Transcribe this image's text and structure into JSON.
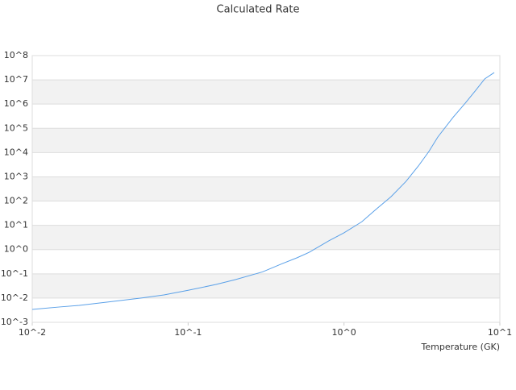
{
  "chart_data": {
    "type": "line",
    "title": "Calculated Rate",
    "x_label": "Temperature (GK)",
    "x": [
      0.01,
      0.015,
      0.02,
      0.03,
      0.05,
      0.07,
      0.1,
      0.15,
      0.2,
      0.3,
      0.4,
      0.5,
      0.6,
      0.8,
      1.0,
      1.3,
      1.6,
      2.0,
      2.5,
      3.0,
      3.5,
      4.0,
      5.0,
      6.0,
      7.0,
      8.0,
      9.2
    ],
    "series": [
      {
        "color": "#5aa0e8",
        "values": [
          0.0034,
          0.0043,
          0.005,
          0.0068,
          0.01,
          0.0135,
          0.021,
          0.036,
          0.057,
          0.12,
          0.26,
          0.46,
          0.78,
          2.3,
          4.9,
          14,
          45,
          150,
          650,
          2800,
          11000,
          44000,
          280000,
          1100000,
          3700000,
          11000000,
          20000000
        ]
      }
    ],
    "log_x": true,
    "log_y": true,
    "xlim": [
      0.01,
      10
    ],
    "ylim": [
      0.001,
      100000000
    ],
    "xticks": [
      {
        "value": 0.01,
        "label": "10^-2"
      },
      {
        "value": 0.1,
        "label": "10^-1"
      },
      {
        "value": 1,
        "label": "10^0"
      },
      {
        "value": 10,
        "label": "10^1"
      }
    ],
    "yticks": [
      {
        "value": 0.001,
        "label": "10^-3"
      },
      {
        "value": 0.01,
        "label": "10^-2"
      },
      {
        "value": 0.1,
        "label": "10^-1"
      },
      {
        "value": 1,
        "label": "10^0"
      },
      {
        "value": 10,
        "label": "10^1"
      },
      {
        "value": 100,
        "label": "10^2"
      },
      {
        "value": 1000,
        "label": "10^3"
      },
      {
        "value": 10000,
        "label": "10^4"
      },
      {
        "value": 100000,
        "label": "10^5"
      },
      {
        "value": 1000000,
        "label": "10^6"
      },
      {
        "value": 10000000,
        "label": "10^7"
      },
      {
        "value": 100000000,
        "label": "10^8"
      }
    ],
    "grid": true,
    "band_color": "#f2f2f2"
  }
}
